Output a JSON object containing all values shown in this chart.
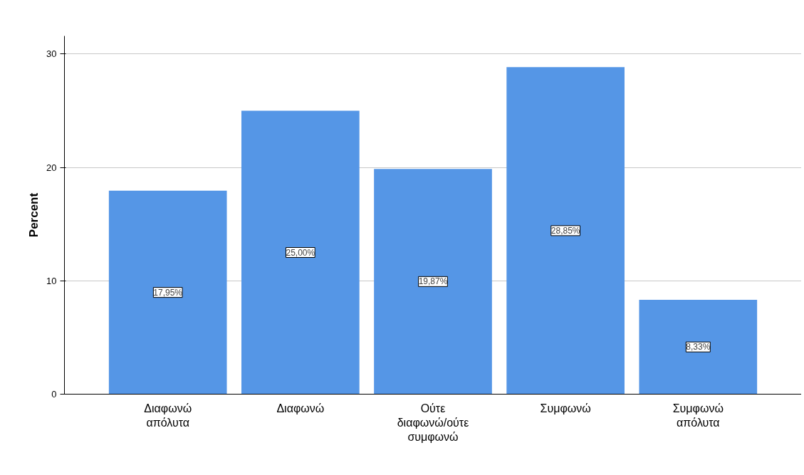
{
  "chart_data": {
    "type": "bar",
    "ylabel": "Percent",
    "categories": [
      "Διαφωνώ απόλυτα",
      "Διαφωνώ",
      "Ούτε διαφωνώ/ούτε συμφωνώ",
      "Συμφωνώ",
      "Συμφωνώ απόλυτα"
    ],
    "values": [
      17.95,
      25.0,
      19.87,
      28.85,
      8.33
    ],
    "value_labels": [
      "17,95%",
      "25,00%",
      "19,87%",
      "28,85%",
      "8,33%"
    ],
    "color": "#5596e6",
    "ylim": [
      0,
      31.6
    ],
    "yticks": [
      0,
      10,
      20,
      30
    ],
    "grid": "y"
  }
}
